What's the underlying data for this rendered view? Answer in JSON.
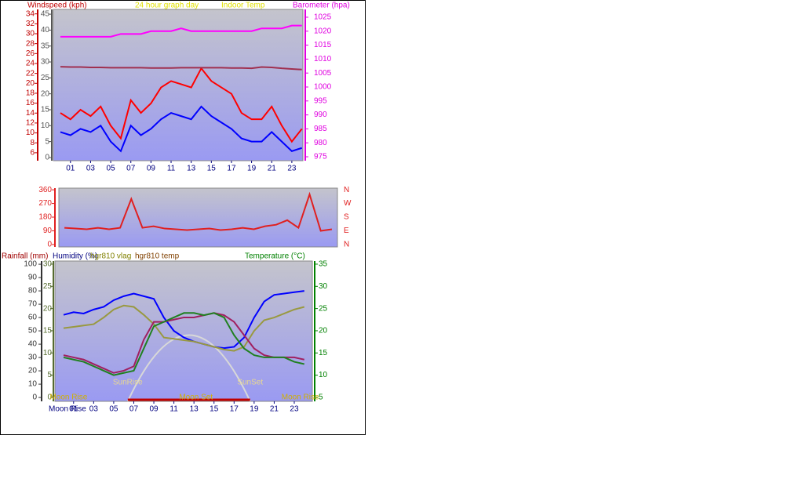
{
  "chart_data": [
    {
      "type": "line",
      "title": "24 hour graph day",
      "ylabel": "Windspeed (kph)",
      "y2label": "Barometer (hpa)",
      "x": [
        0,
        1,
        2,
        3,
        4,
        5,
        6,
        7,
        8,
        9,
        10,
        11,
        12,
        13,
        14,
        15,
        16,
        17,
        18,
        19,
        20,
        21,
        22,
        23,
        24
      ],
      "xlim": [
        -0.7,
        24.1
      ],
      "xticks": [
        {
          "value": 1,
          "label": "01"
        },
        {
          "value": 3,
          "label": "03"
        },
        {
          "value": 5,
          "label": "05"
        },
        {
          "value": 7,
          "label": "07"
        },
        {
          "value": 9,
          "label": "09"
        },
        {
          "value": 11,
          "label": "11"
        },
        {
          "value": 13,
          "label": "13"
        },
        {
          "value": 15,
          "label": "15"
        },
        {
          "value": 17,
          "label": "17"
        },
        {
          "value": 19,
          "label": "19"
        },
        {
          "value": 21,
          "label": "21"
        },
        {
          "value": 23,
          "label": "23"
        }
      ],
      "ylim": [
        -1,
        46.5
      ],
      "yticks": [
        0,
        5,
        10,
        15,
        20,
        25,
        30,
        35,
        40,
        45
      ],
      "y3lim": [
        4.4,
        34.9
      ],
      "y3ticks": [
        6,
        8,
        10,
        12,
        14,
        16,
        18,
        20,
        22,
        24,
        26,
        28,
        30,
        32,
        34
      ],
      "y2lim": [
        973.6,
        1027.8
      ],
      "y2ticks": [
        975,
        980,
        985,
        990,
        995,
        1000,
        1005,
        1010,
        1015,
        1020,
        1025
      ],
      "series": [
        {
          "color": "#ff0000",
          "values": [
            14,
            12,
            15,
            13,
            16,
            10,
            6,
            18,
            14,
            17,
            22,
            24,
            23,
            22,
            28,
            24,
            22,
            20,
            14,
            12,
            12,
            16,
            10,
            5,
            9
          ]
        },
        {
          "color": "#0000ff",
          "values": [
            8,
            7,
            9,
            8,
            10,
            5,
            2,
            10,
            7,
            9,
            12,
            14,
            13,
            12,
            16,
            13,
            11,
            9,
            6,
            5,
            5,
            8,
            5,
            2,
            3
          ]
        },
        {
          "name": "Indoor Temp",
          "color": "#a03050",
          "values": [
            28.5,
            28.4,
            28.4,
            28.3,
            28.3,
            28.2,
            28.2,
            28.2,
            28.2,
            28.1,
            28.1,
            28.1,
            28.2,
            28.2,
            28.2,
            28.2,
            28.2,
            28.1,
            28.1,
            28.0,
            28.4,
            28.3,
            28.0,
            27.8,
            27.6
          ]
        },
        {
          "axis": "y2",
          "color": "#ff00ff",
          "values": [
            1018,
            1018,
            1018,
            1018,
            1018,
            1018,
            1019,
            1019,
            1019,
            1020,
            1020,
            1020,
            1021,
            1020,
            1020,
            1020,
            1020,
            1020,
            1020,
            1020,
            1021,
            1021,
            1021,
            1022,
            1022
          ]
        }
      ]
    },
    {
      "type": "line",
      "x": [
        0,
        1,
        2,
        3,
        4,
        5,
        6,
        7,
        8,
        9,
        10,
        11,
        12,
        13,
        14,
        15,
        16,
        17,
        18,
        19,
        20,
        21,
        22,
        23,
        24
      ],
      "xlim": [
        -0.5,
        24.5
      ],
      "ylim": [
        -16,
        371
      ],
      "yticks": [
        0,
        90,
        180,
        270,
        360
      ],
      "compass": [
        "N",
        "W",
        "S",
        "E",
        "N"
      ],
      "series": [
        {
          "color": "#e02020",
          "values": [
            110,
            105,
            100,
            110,
            100,
            110,
            300,
            110,
            120,
            105,
            100,
            95,
            100,
            105,
            95,
            100,
            110,
            100,
            120,
            130,
            160,
            110,
            330,
            90,
            100
          ]
        }
      ]
    },
    {
      "type": "line",
      "ylabel": "Rainfall (mm)",
      "x_note": "Moon Rise",
      "x": [
        0,
        1,
        2,
        3,
        4,
        5,
        6,
        7,
        8,
        9,
        10,
        11,
        12,
        13,
        14,
        15,
        16,
        17,
        18,
        19,
        20,
        21,
        22,
        23,
        24
      ],
      "xlim": [
        -0.86,
        24.8
      ],
      "xticks": [
        {
          "value": 1,
          "label": "01"
        },
        {
          "value": 3,
          "label": "03"
        },
        {
          "value": 5,
          "label": "05"
        },
        {
          "value": 7,
          "label": "07"
        },
        {
          "value": 9,
          "label": "09"
        },
        {
          "value": 11,
          "label": "11"
        },
        {
          "value": 13,
          "label": "13"
        },
        {
          "value": 15,
          "label": "15"
        },
        {
          "value": 17,
          "label": "17"
        },
        {
          "value": 19,
          "label": "19"
        },
        {
          "value": 21,
          "label": "21"
        },
        {
          "value": 23,
          "label": "23"
        }
      ],
      "ylim": [
        -2.9,
        102.4
      ],
      "yticks": [
        0,
        10,
        20,
        30,
        40,
        50,
        60,
        70,
        80,
        90,
        100
      ],
      "y3lim": [
        -0.9,
        30.7
      ],
      "y3ticks": [
        0,
        5,
        10,
        15,
        20,
        25,
        30
      ],
      "y2lim": [
        4.1,
        35.7
      ],
      "y2ticks": [
        5,
        10,
        15,
        20,
        25,
        30,
        35
      ],
      "series": [
        {
          "name": "Humidity (%)",
          "color": "#0000ff",
          "values": [
            62,
            64,
            63,
            66,
            68,
            73,
            76,
            78,
            76,
            74,
            60,
            50,
            45,
            42,
            40,
            38,
            37,
            38,
            45,
            60,
            72,
            77,
            78,
            79,
            80
          ]
        },
        {
          "name": "hgr810 vlag",
          "color": "#999940",
          "values": [
            52,
            53,
            54,
            55,
            60,
            66,
            69,
            68,
            62,
            55,
            45,
            44,
            43,
            42,
            40,
            38,
            36,
            35,
            38,
            50,
            58,
            60,
            63,
            66,
            68
          ]
        },
        {
          "name": "hgr810 temp",
          "axis": "y2",
          "color": "#a02060",
          "values": [
            14.5,
            14,
            13.5,
            12.5,
            11.5,
            10.5,
            11,
            12,
            18,
            22,
            22,
            22.5,
            23,
            23,
            23.5,
            24,
            23.5,
            22,
            19,
            16,
            14.5,
            14,
            14,
            14,
            13.5
          ]
        },
        {
          "name": "Temperature (°C)",
          "axis": "y2",
          "color": "#208020",
          "values": [
            14,
            13.5,
            13,
            12,
            11,
            10,
            10.5,
            11,
            16,
            21,
            22,
            23,
            24,
            24,
            23.5,
            24,
            23,
            19,
            16,
            14.5,
            14,
            14,
            14,
            13,
            12.5
          ]
        }
      ],
      "annotations": [
        {
          "text": "SunRise",
          "x": 6.4
        },
        {
          "text": "SunSet",
          "x": 18.6
        },
        {
          "text": "Moon Set",
          "x": 13.2
        },
        {
          "text": "Moon Rise",
          "x": 0.5
        },
        {
          "text": "Moon Rise",
          "x": 23.6
        }
      ]
    }
  ]
}
